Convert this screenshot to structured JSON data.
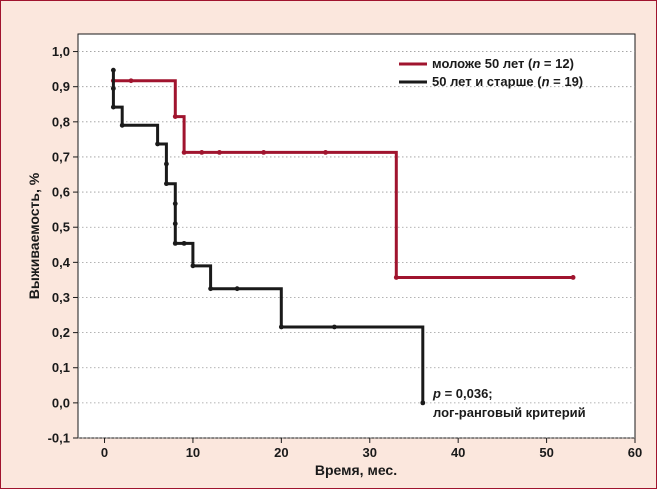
{
  "chart_data": {
    "type": "line",
    "title": "",
    "xlabel": "Время, мес.",
    "ylabel": "Выживаемость, %",
    "xlim": [
      -3,
      60
    ],
    "ylim": [
      -0.1,
      1.05
    ],
    "x_ticks": [
      0,
      10,
      20,
      30,
      40,
      50,
      60
    ],
    "y_ticks": [
      1.0,
      0.9,
      0.8,
      0.7,
      0.6,
      0.5,
      0.4,
      0.3,
      0.2,
      0.1,
      0.0,
      -0.1
    ],
    "x_tick_labels": [
      "0",
      "10",
      "20",
      "30",
      "40",
      "50",
      "60"
    ],
    "y_tick_labels": [
      "1,0",
      "0,9",
      "0,8",
      "0,7",
      "0,6",
      "0,5",
      "0,4",
      "0,3",
      "0,2",
      "0,1",
      "0,0",
      "-0,1"
    ],
    "grid": "horizontal dotted",
    "legend_position": "top-right",
    "series": [
      {
        "legend_main": "моложе 50 лет (",
        "legend_n": "n",
        "legend_tail": " = 12)",
        "color": "#a0142e",
        "steps": [
          [
            1,
            0.917
          ],
          [
            8,
            0.917
          ],
          [
            8,
            0.815
          ],
          [
            9,
            0.815
          ],
          [
            9,
            0.713
          ],
          [
            33,
            0.713
          ],
          [
            33,
            0.357
          ],
          [
            53,
            0.357
          ]
        ],
        "marks": [
          [
            1,
            0.917
          ],
          [
            3,
            0.917
          ],
          [
            8,
            0.815
          ],
          [
            9,
            0.713
          ],
          [
            11,
            0.713
          ],
          [
            13,
            0.713
          ],
          [
            18,
            0.713
          ],
          [
            25,
            0.713
          ],
          [
            33,
            0.357
          ],
          [
            53,
            0.357
          ]
        ]
      },
      {
        "legend_main": "50 лет и старше (",
        "legend_n": "n",
        "legend_tail": " = 19)",
        "color": "#1a1a1a",
        "steps": [
          [
            1,
            0.947
          ],
          [
            1,
            0.842
          ],
          [
            2,
            0.842
          ],
          [
            2,
            0.79
          ],
          [
            6,
            0.79
          ],
          [
            6,
            0.737
          ],
          [
            7,
            0.737
          ],
          [
            7,
            0.624
          ],
          [
            8,
            0.624
          ],
          [
            8,
            0.454
          ],
          [
            10,
            0.454
          ],
          [
            10,
            0.39
          ],
          [
            12,
            0.39
          ],
          [
            12,
            0.325
          ],
          [
            20,
            0.325
          ],
          [
            20,
            0.216
          ],
          [
            36,
            0.216
          ],
          [
            36,
            0.0
          ]
        ],
        "marks": [
          [
            1,
            0.947
          ],
          [
            1,
            0.895
          ],
          [
            1,
            0.842
          ],
          [
            2,
            0.79
          ],
          [
            6,
            0.737
          ],
          [
            7,
            0.68
          ],
          [
            7,
            0.624
          ],
          [
            8,
            0.567
          ],
          [
            8,
            0.51
          ],
          [
            8,
            0.454
          ],
          [
            9,
            0.454
          ],
          [
            10,
            0.39
          ],
          [
            12,
            0.325
          ],
          [
            15,
            0.325
          ],
          [
            20,
            0.216
          ],
          [
            26,
            0.216
          ],
          [
            36,
            0.0
          ]
        ]
      }
    ],
    "annotation": {
      "p_label": "p",
      "p_value": " = 0,036;",
      "test": "лог-ранговый критерий"
    }
  }
}
